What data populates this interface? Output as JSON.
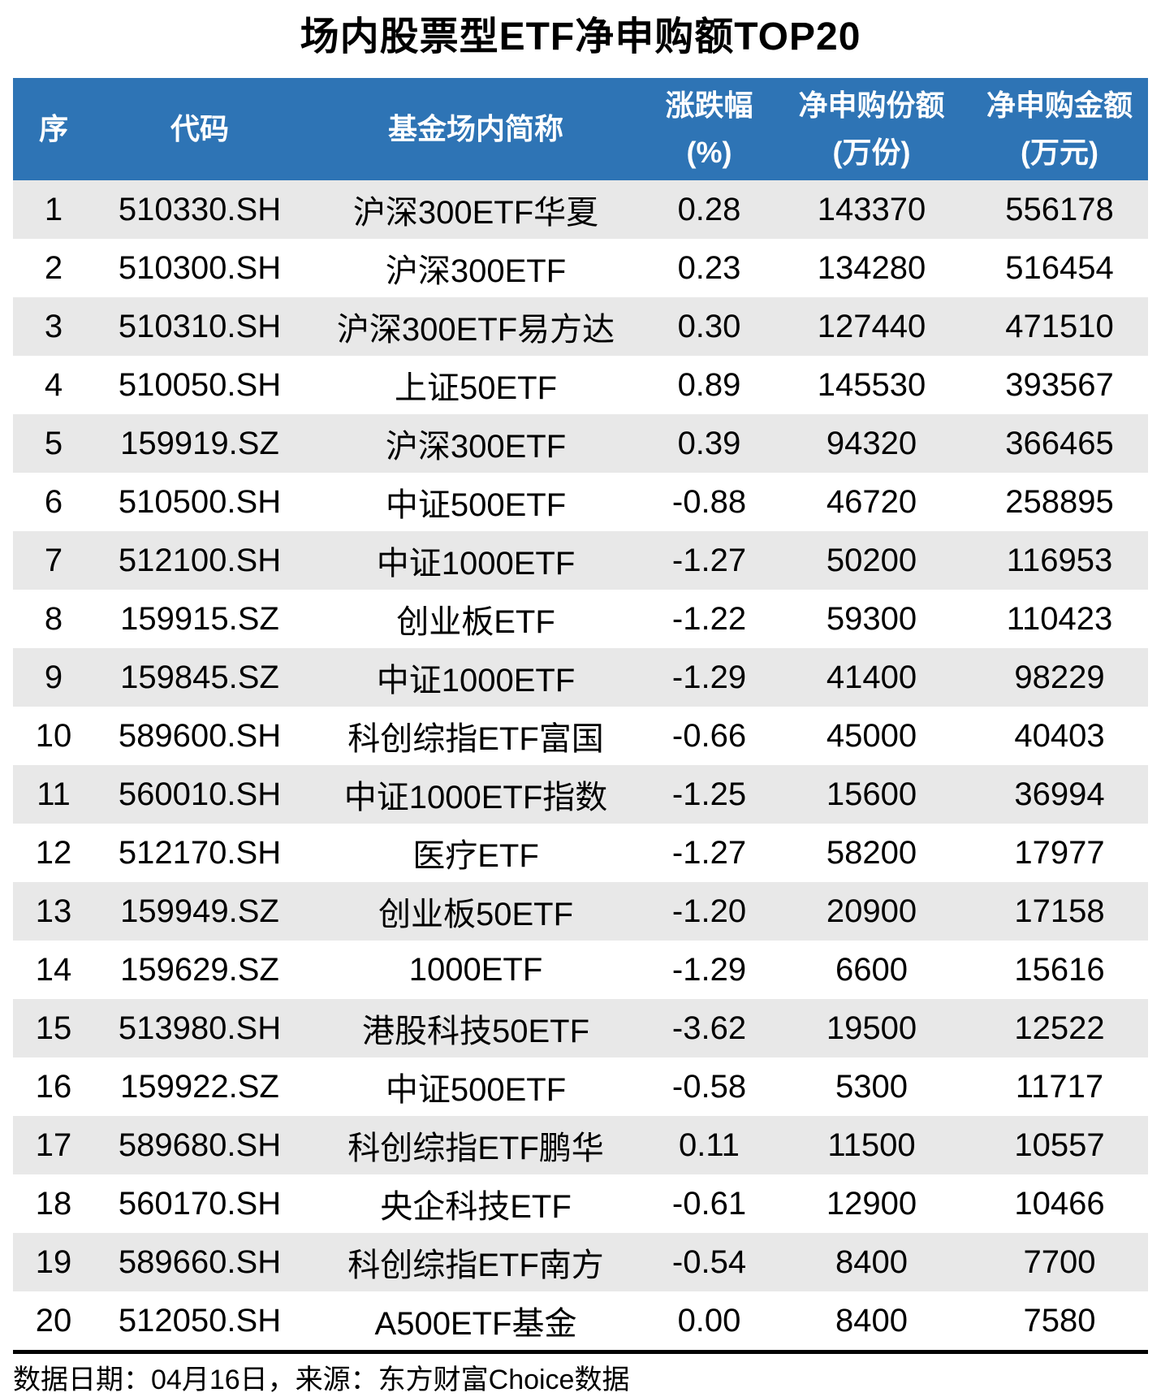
{
  "page": {
    "title": "场内股票型ETF净申购额TOP20",
    "footer": "数据日期：04月16日，来源：东方财富Choice数据"
  },
  "colors": {
    "header_bg": "#2E74B5",
    "header_text": "#FFFFFF",
    "row_alt_bg": "#E8E8E8",
    "row_bg": "#FFFFFF",
    "body_text": "#000000",
    "divider": "#000000"
  },
  "chart_data": {
    "type": "table",
    "title": "场内股票型ETF净申购额TOP20",
    "columns": [
      {
        "line1": "序",
        "line2": ""
      },
      {
        "line1": "代码",
        "line2": ""
      },
      {
        "line1": "基金场内简称",
        "line2": ""
      },
      {
        "line1": "涨跌幅",
        "line2": "(%)"
      },
      {
        "line1": "净申购份额",
        "line2": "(万份)"
      },
      {
        "line1": "净申购金额",
        "line2": "(万元)"
      }
    ],
    "rows": [
      [
        "1",
        "510330.SH",
        "沪深300ETF华夏",
        "0.28",
        "143370",
        "556178"
      ],
      [
        "2",
        "510300.SH",
        "沪深300ETF",
        "0.23",
        "134280",
        "516454"
      ],
      [
        "3",
        "510310.SH",
        "沪深300ETF易方达",
        "0.30",
        "127440",
        "471510"
      ],
      [
        "4",
        "510050.SH",
        "上证50ETF",
        "0.89",
        "145530",
        "393567"
      ],
      [
        "5",
        "159919.SZ",
        "沪深300ETF",
        "0.39",
        "94320",
        "366465"
      ],
      [
        "6",
        "510500.SH",
        "中证500ETF",
        "-0.88",
        "46720",
        "258895"
      ],
      [
        "7",
        "512100.SH",
        "中证1000ETF",
        "-1.27",
        "50200",
        "116953"
      ],
      [
        "8",
        "159915.SZ",
        "创业板ETF",
        "-1.22",
        "59300",
        "110423"
      ],
      [
        "9",
        "159845.SZ",
        "中证1000ETF",
        "-1.29",
        "41400",
        "98229"
      ],
      [
        "10",
        "589600.SH",
        "科创综指ETF富国",
        "-0.66",
        "45000",
        "40403"
      ],
      [
        "11",
        "560010.SH",
        "中证1000ETF指数",
        "-1.25",
        "15600",
        "36994"
      ],
      [
        "12",
        "512170.SH",
        "医疗ETF",
        "-1.27",
        "58200",
        "17977"
      ],
      [
        "13",
        "159949.SZ",
        "创业板50ETF",
        "-1.20",
        "20900",
        "17158"
      ],
      [
        "14",
        "159629.SZ",
        "1000ETF",
        "-1.29",
        "6600",
        "15616"
      ],
      [
        "15",
        "513980.SH",
        "港股科技50ETF",
        "-3.62",
        "19500",
        "12522"
      ],
      [
        "16",
        "159922.SZ",
        "中证500ETF",
        "-0.58",
        "5300",
        "11717"
      ],
      [
        "17",
        "589680.SH",
        "科创综指ETF鹏华",
        "0.11",
        "11500",
        "10557"
      ],
      [
        "18",
        "560170.SH",
        "央企科技ETF",
        "-0.61",
        "12900",
        "10466"
      ],
      [
        "19",
        "589660.SH",
        "科创综指ETF南方",
        "-0.54",
        "8400",
        "7700"
      ],
      [
        "20",
        "512050.SH",
        "A500ETF基金",
        "0.00",
        "8400",
        "7580"
      ]
    ],
    "source_note": "数据日期：04月16日，来源：东方财富Choice数据"
  }
}
